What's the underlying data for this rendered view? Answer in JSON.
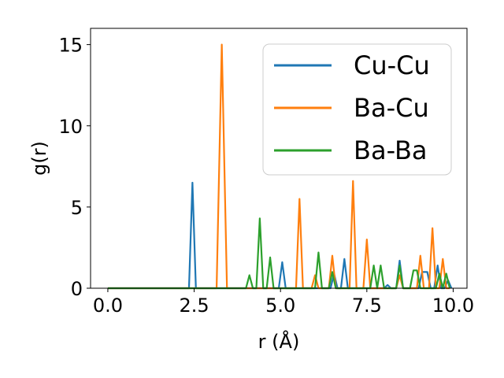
{
  "chart_data": {
    "type": "line",
    "xlabel": "r (Å)",
    "ylabel": "g(r)",
    "xlim": [
      -0.5,
      10.4
    ],
    "ylim": [
      0,
      16
    ],
    "xticks": [
      {
        "value": 0.0,
        "label": "0.0"
      },
      {
        "value": 2.5,
        "label": "2.5"
      },
      {
        "value": 5.0,
        "label": "5.0"
      },
      {
        "value": 7.5,
        "label": "7.5"
      },
      {
        "value": 10.0,
        "label": "10.0"
      }
    ],
    "yticks": [
      {
        "value": 0,
        "label": "0"
      },
      {
        "value": 5,
        "label": "5"
      },
      {
        "value": 10,
        "label": "10"
      },
      {
        "value": 15,
        "label": "15"
      }
    ],
    "grid": false,
    "legend_position": "top-right",
    "series": [
      {
        "name": "Cu-Cu",
        "color": "#1f77b4",
        "x": [
          0.0,
          2.35,
          2.45,
          2.55,
          4.95,
          5.05,
          5.15,
          6.45,
          6.55,
          6.65,
          6.75,
          6.85,
          6.95,
          8.0,
          8.1,
          8.2,
          8.35,
          8.45,
          8.55,
          9.0,
          9.1,
          9.25,
          9.35,
          9.45,
          9.55,
          9.65,
          9.75,
          9.85,
          9.95
        ],
        "y": [
          0.0,
          0.0,
          6.5,
          0.0,
          0.0,
          1.6,
          0.0,
          0.0,
          0.9,
          0.0,
          0.0,
          1.8,
          0.0,
          0.0,
          0.2,
          0.0,
          0.0,
          1.7,
          0.0,
          0.0,
          1.0,
          1.0,
          0.0,
          0.0,
          1.4,
          0.0,
          0.0,
          0.5,
          0.0
        ]
      },
      {
        "name": "Ba-Cu",
        "color": "#ff7f0e",
        "x": [
          0.0,
          3.15,
          3.3,
          3.45,
          5.45,
          5.55,
          5.65,
          5.9,
          6.0,
          6.1,
          6.4,
          6.5,
          6.6,
          7.0,
          7.1,
          7.2,
          7.4,
          7.5,
          7.6,
          8.35,
          8.45,
          8.55,
          8.95,
          9.05,
          9.15,
          9.3,
          9.4,
          9.5,
          9.6,
          9.7,
          9.8,
          9.9
        ],
        "y": [
          0.0,
          0.0,
          15.0,
          0.0,
          0.0,
          5.5,
          0.0,
          0.0,
          0.8,
          0.0,
          0.0,
          2.0,
          0.0,
          0.0,
          6.6,
          0.0,
          0.0,
          3.0,
          0.0,
          0.0,
          0.8,
          0.0,
          0.0,
          2.0,
          0.0,
          0.0,
          3.7,
          0.0,
          0.0,
          1.8,
          0.0,
          0.0
        ]
      },
      {
        "name": "Ba-Ba",
        "color": "#2ca02c",
        "x": [
          0.0,
          4.0,
          4.1,
          4.2,
          4.3,
          4.4,
          4.5,
          4.6,
          4.7,
          4.8,
          5.9,
          6.0,
          6.1,
          6.2,
          6.4,
          6.5,
          6.6,
          7.6,
          7.7,
          7.8,
          7.9,
          8.0,
          8.35,
          8.45,
          8.55,
          8.75,
          8.85,
          8.95,
          9.05,
          9.5,
          9.6,
          9.7,
          9.8,
          9.9
        ],
        "y": [
          0.0,
          0.0,
          0.8,
          0.0,
          0.0,
          4.3,
          0.0,
          0.0,
          1.9,
          0.0,
          0.0,
          0.0,
          2.2,
          0.0,
          0.0,
          1.0,
          0.0,
          0.0,
          1.4,
          0.0,
          1.4,
          0.0,
          0.0,
          1.4,
          0.0,
          0.0,
          1.1,
          1.1,
          0.0,
          0.0,
          0.9,
          0.0,
          0.9,
          0.0
        ]
      }
    ]
  }
}
